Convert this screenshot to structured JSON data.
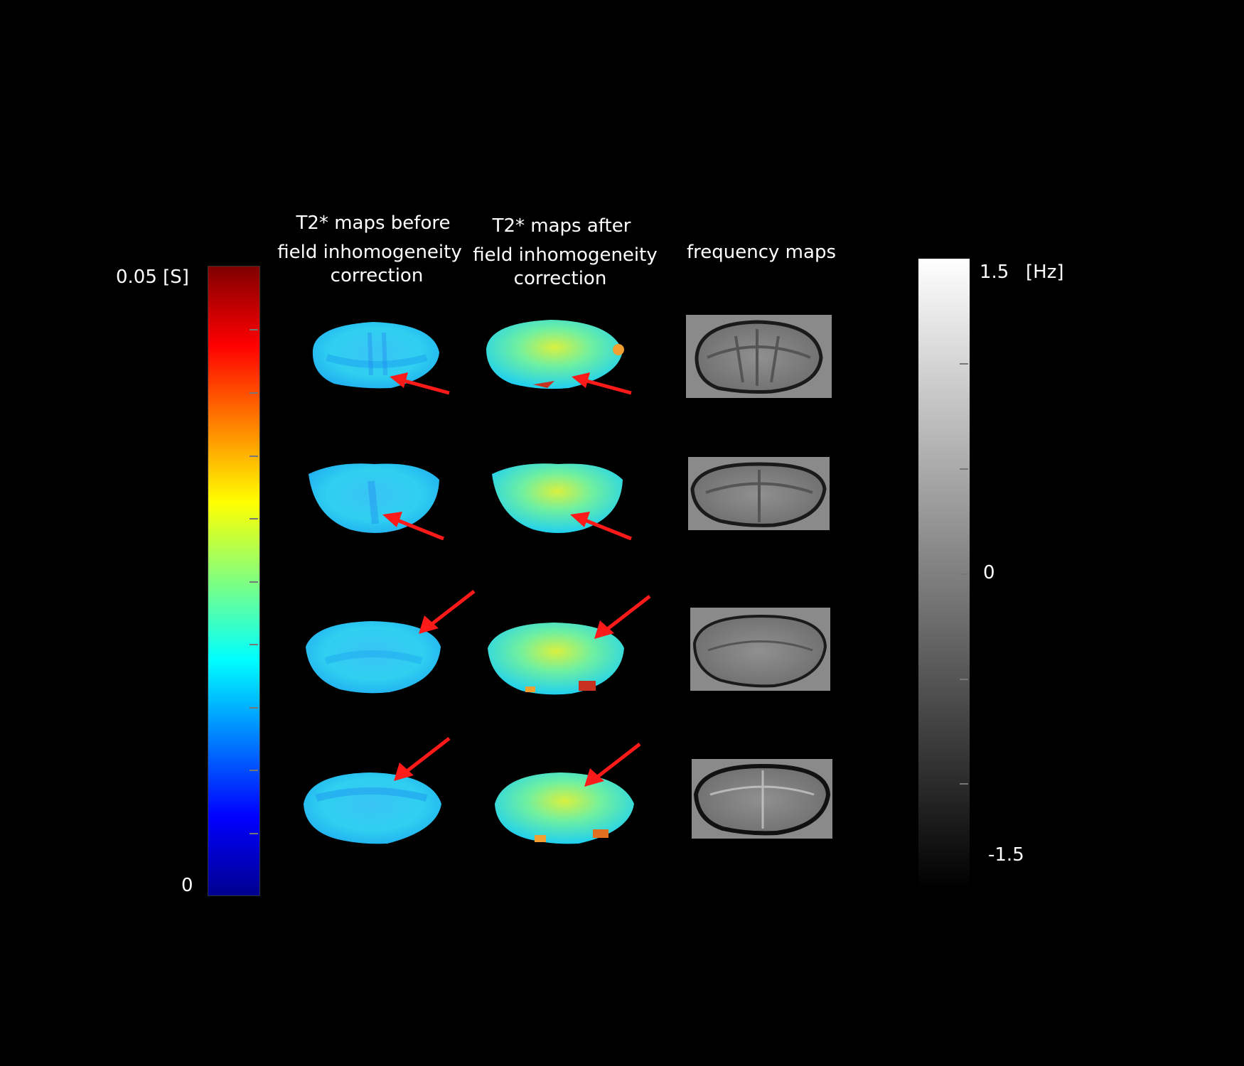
{
  "headers": {
    "col1_line1": "T2* maps before",
    "col1_line2": "field inhomogeneity",
    "col1_line3": "correction",
    "col2_line1": "T2* maps after",
    "col2_line2": "field inhomogeneity",
    "col2_line3": "correction",
    "col3_line1": "frequency maps"
  },
  "left_colorbar": {
    "max_label": "0.05 [S]",
    "min_label": "0",
    "colormap": "jet",
    "range": [
      0,
      0.05
    ]
  },
  "right_colorbar": {
    "max_label": "1.5",
    "unit_label": "[Hz]",
    "mid_label": "0",
    "min_label": "-1.5",
    "colormap": "gray",
    "range": [
      -1.5,
      1.5
    ]
  },
  "colors": {
    "background": "#000000",
    "arrow": "#ff1a1a",
    "t2_before_base": "#29c8f0",
    "t2_after_base": "#3fe0c8"
  },
  "panels": {
    "rows": 4,
    "columns": [
      "t2-before",
      "t2-after",
      "frequency"
    ]
  }
}
